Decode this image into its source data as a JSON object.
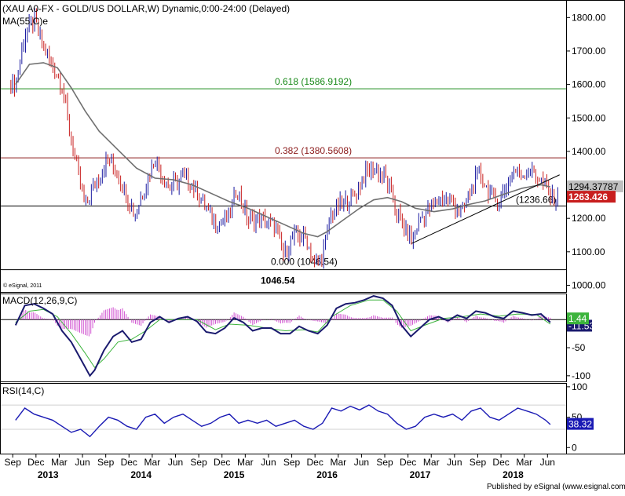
{
  "chart_title": "(XAU A0-FX - GOLD/US DOLLAR,W) Dynamic,0:00-24:00 (Delayed)",
  "ma_label": "MA(55,C)e",
  "copyright": "© eSignal, 2011",
  "footer": "Published by eSignal (www.esignal.com)",
  "colors": {
    "up": "#1a1aa0",
    "down": "#c81e1e",
    "ma": "#707070",
    "fib618": "#1a8a1a",
    "fib382": "#8b1a1a",
    "macd": "#1a1a6e",
    "signal": "#3cb43c",
    "hist": "#d050d0",
    "rsi": "#1a1ab4"
  },
  "chart_data": [
    {
      "type": "candlestick",
      "series_name": "XAU A0-FX weekly",
      "y_ticks": [
        1000,
        1100,
        1200,
        1300,
        1400,
        1500,
        1600,
        1700,
        1800
      ],
      "y_tick_labels": [
        "1000.00",
        "1100.00",
        "1200.00",
        "1300.00",
        "1400.00",
        "1500.00",
        "1600.00",
        "1700.00",
        "1800.00"
      ],
      "ylim": [
        980,
        1850
      ],
      "x_tick_labels": [
        "Sep",
        "Dec",
        "Mar",
        "Jun",
        "Sep",
        "Dec",
        "Mar",
        "Jun",
        "Sep",
        "Dec",
        "Mar",
        "Jun",
        "Sep",
        "Dec",
        "Mar",
        "Jun",
        "Sep",
        "Dec",
        "Mar",
        "Jun",
        "Sep",
        "Dec",
        "Mar",
        "Jun"
      ],
      "year_labels": [
        "2013",
        "2014",
        "2015",
        "2016",
        "2017",
        "2018"
      ],
      "close_path": [
        [
          2012.7,
          1600
        ],
        [
          2012.8,
          1750
        ],
        [
          2012.9,
          1790
        ],
        [
          2013.05,
          1680
        ],
        [
          2013.2,
          1600
        ],
        [
          2013.32,
          1400
        ],
        [
          2013.45,
          1240
        ],
        [
          2013.55,
          1300
        ],
        [
          2013.7,
          1380
        ],
        [
          2013.85,
          1300
        ],
        [
          2013.98,
          1210
        ],
        [
          2014.1,
          1300
        ],
        [
          2014.2,
          1380
        ],
        [
          2014.35,
          1290
        ],
        [
          2014.5,
          1320
        ],
        [
          2014.6,
          1300
        ],
        [
          2014.75,
          1230
        ],
        [
          2014.85,
          1180
        ],
        [
          2014.98,
          1200
        ],
        [
          2015.08,
          1290
        ],
        [
          2015.2,
          1190
        ],
        [
          2015.35,
          1200
        ],
        [
          2015.5,
          1170
        ],
        [
          2015.58,
          1090
        ],
        [
          2015.7,
          1150
        ],
        [
          2015.82,
          1140
        ],
        [
          2015.92,
          1060
        ],
        [
          2016.0,
          1090
        ],
        [
          2016.1,
          1220
        ],
        [
          2016.25,
          1250
        ],
        [
          2016.35,
          1270
        ],
        [
          2016.45,
          1330
        ],
        [
          2016.55,
          1350
        ],
        [
          2016.68,
          1320
        ],
        [
          2016.8,
          1220
        ],
        [
          2016.9,
          1160
        ],
        [
          2016.97,
          1130
        ],
        [
          2017.05,
          1200
        ],
        [
          2017.2,
          1240
        ],
        [
          2017.3,
          1265
        ],
        [
          2017.42,
          1240
        ],
        [
          2017.5,
          1215
        ],
        [
          2017.58,
          1270
        ],
        [
          2017.68,
          1340
        ],
        [
          2017.78,
          1280
        ],
        [
          2017.9,
          1250
        ],
        [
          2017.98,
          1300
        ],
        [
          2018.05,
          1345
        ],
        [
          2018.15,
          1330
        ],
        [
          2018.22,
          1350
        ],
        [
          2018.3,
          1330
        ],
        [
          2018.38,
          1300
        ],
        [
          2018.45,
          1263
        ]
      ],
      "ma_path": [
        [
          2012.7,
          1600
        ],
        [
          2012.85,
          1660
        ],
        [
          2013.0,
          1665
        ],
        [
          2013.15,
          1650
        ],
        [
          2013.3,
          1590
        ],
        [
          2013.45,
          1520
        ],
        [
          2013.6,
          1460
        ],
        [
          2013.8,
          1405
        ],
        [
          2014.0,
          1350
        ],
        [
          2014.2,
          1320
        ],
        [
          2014.4,
          1315
        ],
        [
          2014.6,
          1300
        ],
        [
          2014.8,
          1275
        ],
        [
          2015.0,
          1250
        ],
        [
          2015.2,
          1230
        ],
        [
          2015.4,
          1205
        ],
        [
          2015.6,
          1180
        ],
        [
          2015.8,
          1155
        ],
        [
          2015.95,
          1145
        ],
        [
          2016.05,
          1160
        ],
        [
          2016.2,
          1190
        ],
        [
          2016.4,
          1230
        ],
        [
          2016.55,
          1255
        ],
        [
          2016.7,
          1262
        ],
        [
          2016.85,
          1250
        ],
        [
          2017.0,
          1230
        ],
        [
          2017.2,
          1220
        ],
        [
          2017.4,
          1228
        ],
        [
          2017.55,
          1240
        ],
        [
          2017.75,
          1252
        ],
        [
          2017.95,
          1272
        ],
        [
          2018.15,
          1290
        ],
        [
          2018.35,
          1300
        ],
        [
          2018.45,
          1294
        ]
      ],
      "trendline": [
        [
          2016.96,
          1125
        ],
        [
          2018.55,
          1330
        ]
      ],
      "ma_last_value": "1294.37787",
      "last_price": "1263.426",
      "levels": [
        {
          "value": 1586.9192,
          "label": "0.618 (1586.9192)"
        },
        {
          "value": 1380.5608,
          "label": "0.382 (1380.5608)"
        },
        {
          "value": 1236.66,
          "label": "(1236.66)"
        },
        {
          "value": 1046.54,
          "label": "0.000 (1046.54)"
        }
      ],
      "low_label": "1046.54"
    },
    {
      "type": "line",
      "title": "MACD(12,26,9,C)",
      "y_ticks": [
        0,
        -50,
        -100
      ],
      "y_tick_labels": [
        "0",
        "-50",
        "-100"
      ],
      "ylim": [
        -110,
        45
      ],
      "macd_value": "1.44",
      "signal_value": "-11.53",
      "macd_path": [
        [
          2012.7,
          -10
        ],
        [
          2012.8,
          25
        ],
        [
          2012.9,
          28
        ],
        [
          2013.0,
          20
        ],
        [
          2013.1,
          10
        ],
        [
          2013.2,
          -20
        ],
        [
          2013.3,
          -40
        ],
        [
          2013.4,
          -70
        ],
        [
          2013.5,
          -100
        ],
        [
          2013.55,
          -90
        ],
        [
          2013.65,
          -55
        ],
        [
          2013.75,
          -30
        ],
        [
          2013.85,
          -20
        ],
        [
          2013.95,
          -40
        ],
        [
          2014.05,
          -35
        ],
        [
          2014.15,
          -5
        ],
        [
          2014.25,
          5
        ],
        [
          2014.35,
          -5
        ],
        [
          2014.45,
          2
        ],
        [
          2014.55,
          5
        ],
        [
          2014.65,
          -3
        ],
        [
          2014.75,
          -22
        ],
        [
          2014.85,
          -25
        ],
        [
          2014.95,
          -15
        ],
        [
          2015.05,
          3
        ],
        [
          2015.15,
          -5
        ],
        [
          2015.25,
          -20
        ],
        [
          2015.35,
          -15
        ],
        [
          2015.45,
          -15
        ],
        [
          2015.55,
          -25
        ],
        [
          2015.65,
          -25
        ],
        [
          2015.75,
          -12
        ],
        [
          2015.85,
          -20
        ],
        [
          2015.95,
          -25
        ],
        [
          2016.05,
          -10
        ],
        [
          2016.15,
          20
        ],
        [
          2016.25,
          28
        ],
        [
          2016.35,
          30
        ],
        [
          2016.45,
          35
        ],
        [
          2016.55,
          42
        ],
        [
          2016.65,
          38
        ],
        [
          2016.75,
          25
        ],
        [
          2016.85,
          -10
        ],
        [
          2016.95,
          -30
        ],
        [
          2017.05,
          -15
        ],
        [
          2017.15,
          0
        ],
        [
          2017.25,
          5
        ],
        [
          2017.35,
          -2
        ],
        [
          2017.45,
          8
        ],
        [
          2017.55,
          2
        ],
        [
          2017.65,
          15
        ],
        [
          2017.75,
          12
        ],
        [
          2017.85,
          5
        ],
        [
          2017.95,
          2
        ],
        [
          2018.05,
          15
        ],
        [
          2018.15,
          12
        ],
        [
          2018.25,
          8
        ],
        [
          2018.35,
          10
        ],
        [
          2018.45,
          -5
        ]
      ],
      "signal_path": [
        [
          2012.7,
          -5
        ],
        [
          2012.85,
          15
        ],
        [
          2013.0,
          18
        ],
        [
          2013.15,
          5
        ],
        [
          2013.3,
          -25
        ],
        [
          2013.45,
          -60
        ],
        [
          2013.55,
          -85
        ],
        [
          2013.65,
          -70
        ],
        [
          2013.8,
          -40
        ],
        [
          2013.95,
          -35
        ],
        [
          2014.1,
          -20
        ],
        [
          2014.25,
          0
        ],
        [
          2014.45,
          0
        ],
        [
          2014.65,
          0
        ],
        [
          2014.85,
          -18
        ],
        [
          2015.0,
          -8
        ],
        [
          2015.2,
          -10
        ],
        [
          2015.4,
          -15
        ],
        [
          2015.6,
          -20
        ],
        [
          2015.8,
          -18
        ],
        [
          2015.95,
          -22
        ],
        [
          2016.1,
          5
        ],
        [
          2016.3,
          25
        ],
        [
          2016.5,
          35
        ],
        [
          2016.65,
          35
        ],
        [
          2016.8,
          15
        ],
        [
          2016.95,
          -20
        ],
        [
          2017.1,
          -10
        ],
        [
          2017.3,
          2
        ],
        [
          2017.5,
          5
        ],
        [
          2017.7,
          10
        ],
        [
          2017.9,
          6
        ],
        [
          2018.1,
          10
        ],
        [
          2018.3,
          9
        ],
        [
          2018.45,
          -8
        ]
      ],
      "hist_range": [
        2012.75,
        2018.45
      ]
    },
    {
      "type": "line",
      "title": "RSI(14,C)",
      "y_ticks": [
        100,
        50,
        0
      ],
      "y_tick_labels": [
        "100",
        "50",
        "0"
      ],
      "ylim": [
        -10,
        105
      ],
      "rsi_value": "38.32",
      "rsi_path": [
        [
          2012.7,
          45
        ],
        [
          2012.8,
          65
        ],
        [
          2012.9,
          55
        ],
        [
          2013.0,
          50
        ],
        [
          2013.1,
          45
        ],
        [
          2013.2,
          35
        ],
        [
          2013.3,
          25
        ],
        [
          2013.4,
          30
        ],
        [
          2013.5,
          18
        ],
        [
          2013.6,
          35
        ],
        [
          2013.7,
          50
        ],
        [
          2013.8,
          45
        ],
        [
          2013.9,
          35
        ],
        [
          2014.0,
          30
        ],
        [
          2014.1,
          50
        ],
        [
          2014.2,
          55
        ],
        [
          2014.3,
          40
        ],
        [
          2014.4,
          50
        ],
        [
          2014.5,
          55
        ],
        [
          2014.6,
          45
        ],
        [
          2014.7,
          35
        ],
        [
          2014.8,
          40
        ],
        [
          2014.9,
          50
        ],
        [
          2015.0,
          55
        ],
        [
          2015.1,
          40
        ],
        [
          2015.2,
          45
        ],
        [
          2015.3,
          40
        ],
        [
          2015.4,
          45
        ],
        [
          2015.5,
          35
        ],
        [
          2015.6,
          40
        ],
        [
          2015.7,
          45
        ],
        [
          2015.8,
          35
        ],
        [
          2015.9,
          30
        ],
        [
          2016.0,
          40
        ],
        [
          2016.1,
          65
        ],
        [
          2016.2,
          60
        ],
        [
          2016.3,
          68
        ],
        [
          2016.4,
          62
        ],
        [
          2016.5,
          70
        ],
        [
          2016.6,
          60
        ],
        [
          2016.7,
          55
        ],
        [
          2016.8,
          40
        ],
        [
          2016.9,
          30
        ],
        [
          2017.0,
          35
        ],
        [
          2017.1,
          50
        ],
        [
          2017.2,
          55
        ],
        [
          2017.3,
          50
        ],
        [
          2017.4,
          55
        ],
        [
          2017.5,
          45
        ],
        [
          2017.6,
          60
        ],
        [
          2017.7,
          65
        ],
        [
          2017.8,
          50
        ],
        [
          2017.9,
          45
        ],
        [
          2018.0,
          55
        ],
        [
          2018.1,
          65
        ],
        [
          2018.2,
          60
        ],
        [
          2018.3,
          55
        ],
        [
          2018.4,
          45
        ],
        [
          2018.45,
          38
        ]
      ]
    }
  ]
}
